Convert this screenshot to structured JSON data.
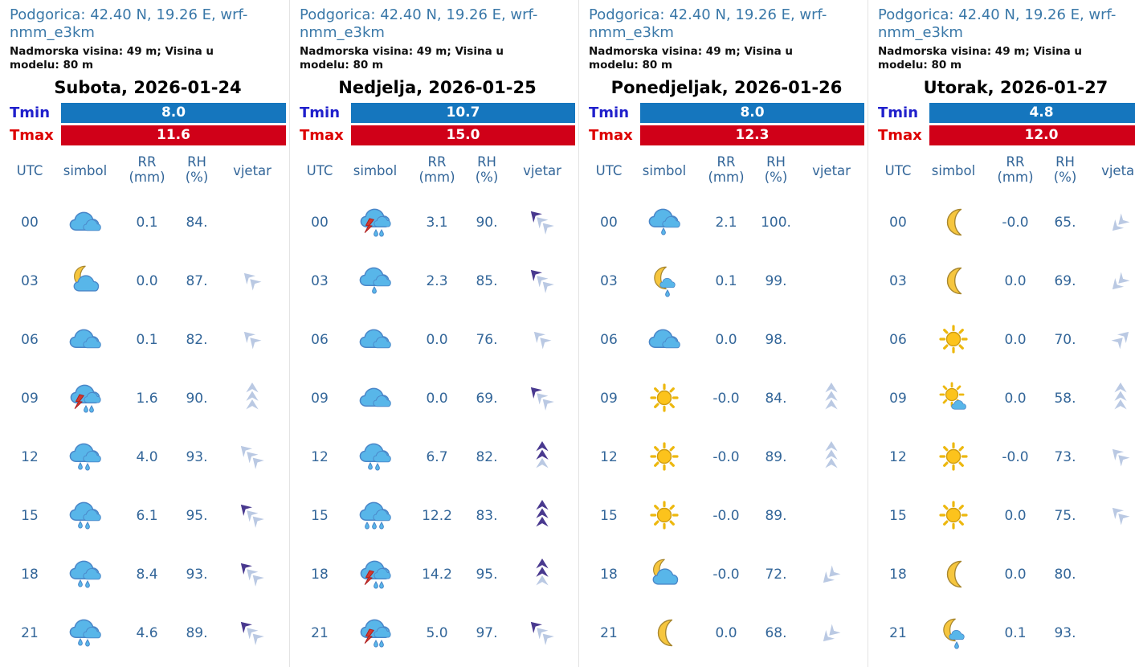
{
  "meta": {
    "location_title": "Podgorica: 42.40 N, 19.26 E, wrf-nmm_e3km",
    "elevation_line": "Nadmorska visina: 49 m; Visina u modelu: 80 m",
    "tmin_label": "Tmin",
    "tmax_label": "Tmax",
    "headers": {
      "utc": "UTC",
      "symbol": "simbol",
      "rr_line1": "RR",
      "rr_line2": "(mm)",
      "rh_line1": "RH",
      "rh_line2": "(%)",
      "wind": "vjetar"
    }
  },
  "colors": {
    "location_blue": "#3a78a8",
    "table_blue": "#336699",
    "tmin_label": "#2020cc",
    "tmax_label": "#dd0000",
    "tmin_bar": "#1576be",
    "tmax_bar": "#d00018",
    "wind_light": "#bac9e3",
    "wind_dark": "#49398f",
    "cloud_fill": "#58b6e9",
    "cloud_stroke": "#4a86c8",
    "sun_fill": "#fcc31c",
    "sun_stroke": "#cf9d12",
    "moon_fill": "#f6c63e",
    "moon_stroke": "#a8872f",
    "bolt_fill": "#d23b2f",
    "bolt_stroke": "#b01f1f"
  },
  "days": [
    {
      "title": "Subota, 2026-01-24",
      "tmin": "8.0",
      "tmax": "11.6",
      "rows": [
        {
          "utc": "00",
          "icon": "cloudy",
          "rr": "0.1",
          "rh": "84.",
          "wind": null
        },
        {
          "utc": "03",
          "icon": "night-cloudy",
          "rr": "0.0",
          "rh": "87.",
          "wind": {
            "dir": "up-left",
            "chevrons": [
              "light",
              "light"
            ]
          }
        },
        {
          "utc": "06",
          "icon": "cloudy",
          "rr": "0.1",
          "rh": "82.",
          "wind": {
            "dir": "up-left",
            "chevrons": [
              "light",
              "light"
            ]
          }
        },
        {
          "utc": "09",
          "icon": "thunderstorm-rain",
          "rr": "1.6",
          "rh": "90.",
          "wind": {
            "dir": "up",
            "chevrons": [
              "light",
              "light",
              "light"
            ]
          }
        },
        {
          "utc": "12",
          "icon": "rain",
          "rr": "4.0",
          "rh": "93.",
          "wind": {
            "dir": "up-left",
            "chevrons": [
              "light",
              "light",
              "light"
            ]
          }
        },
        {
          "utc": "15",
          "icon": "rain",
          "rr": "6.1",
          "rh": "95.",
          "wind": {
            "dir": "up-left",
            "chevrons": [
              "dark",
              "light",
              "light"
            ]
          }
        },
        {
          "utc": "18",
          "icon": "rain",
          "rr": "8.4",
          "rh": "93.",
          "wind": {
            "dir": "up-left",
            "chevrons": [
              "dark",
              "light",
              "light"
            ]
          }
        },
        {
          "utc": "21",
          "icon": "rain",
          "rr": "4.6",
          "rh": "89.",
          "wind": {
            "dir": "up-left",
            "chevrons": [
              "dark",
              "light",
              "light"
            ]
          }
        }
      ]
    },
    {
      "title": "Nedjelja, 2026-01-25",
      "tmin": "10.7",
      "tmax": "15.0",
      "rows": [
        {
          "utc": "00",
          "icon": "thunderstorm-rain",
          "rr": "3.1",
          "rh": "90.",
          "wind": {
            "dir": "up-left",
            "chevrons": [
              "dark",
              "light",
              "light"
            ]
          }
        },
        {
          "utc": "03",
          "icon": "light-rain",
          "rr": "2.3",
          "rh": "85.",
          "wind": {
            "dir": "up-left",
            "chevrons": [
              "dark",
              "light",
              "light"
            ]
          }
        },
        {
          "utc": "06",
          "icon": "cloudy",
          "rr": "0.0",
          "rh": "76.",
          "wind": {
            "dir": "up-left",
            "chevrons": [
              "light",
              "light"
            ]
          }
        },
        {
          "utc": "09",
          "icon": "cloudy",
          "rr": "0.0",
          "rh": "69.",
          "wind": {
            "dir": "up-left",
            "chevrons": [
              "dark",
              "light",
              "light"
            ]
          }
        },
        {
          "utc": "12",
          "icon": "rain",
          "rr": "6.7",
          "rh": "82.",
          "wind": {
            "dir": "up",
            "chevrons": [
              "dark",
              "dark",
              "light"
            ]
          }
        },
        {
          "utc": "15",
          "icon": "heavy-rain",
          "rr": "12.2",
          "rh": "83.",
          "wind": {
            "dir": "up",
            "chevrons": [
              "dark",
              "dark",
              "dark"
            ]
          }
        },
        {
          "utc": "18",
          "icon": "thunderstorm-rain",
          "rr": "14.2",
          "rh": "95.",
          "wind": {
            "dir": "up",
            "chevrons": [
              "dark",
              "dark",
              "light"
            ]
          }
        },
        {
          "utc": "21",
          "icon": "thunderstorm-rain",
          "rr": "5.0",
          "rh": "97.",
          "wind": {
            "dir": "up-left",
            "chevrons": [
              "dark",
              "light",
              "light"
            ]
          }
        }
      ]
    },
    {
      "title": "Ponedjeljak, 2026-01-26",
      "tmin": "8.0",
      "tmax": "12.3",
      "rows": [
        {
          "utc": "00",
          "icon": "light-rain",
          "rr": "2.1",
          "rh": "100.",
          "wind": null
        },
        {
          "utc": "03",
          "icon": "night-light-rain",
          "rr": "0.1",
          "rh": "99.",
          "wind": null
        },
        {
          "utc": "06",
          "icon": "cloudy",
          "rr": "0.0",
          "rh": "98.",
          "wind": null
        },
        {
          "utc": "09",
          "icon": "sunny",
          "rr": "-0.0",
          "rh": "84.",
          "wind": {
            "dir": "up",
            "chevrons": [
              "light",
              "light",
              "light"
            ]
          }
        },
        {
          "utc": "12",
          "icon": "sunny",
          "rr": "-0.0",
          "rh": "89.",
          "wind": {
            "dir": "up",
            "chevrons": [
              "light",
              "light",
              "light"
            ]
          }
        },
        {
          "utc": "15",
          "icon": "sunny",
          "rr": "-0.0",
          "rh": "89.",
          "wind": null
        },
        {
          "utc": "18",
          "icon": "night-cloudy",
          "rr": "-0.0",
          "rh": "72.",
          "wind": {
            "dir": "down-left",
            "chevrons": [
              "light",
              "light"
            ]
          }
        },
        {
          "utc": "21",
          "icon": "clear-night",
          "rr": "0.0",
          "rh": "68.",
          "wind": {
            "dir": "down-left",
            "chevrons": [
              "light",
              "light"
            ]
          }
        }
      ]
    },
    {
      "title": "Utorak, 2026-01-27",
      "tmin": "4.8",
      "tmax": "12.0",
      "rows": [
        {
          "utc": "00",
          "icon": "clear-night",
          "rr": "-0.0",
          "rh": "65.",
          "wind": {
            "dir": "down-left",
            "chevrons": [
              "light",
              "light"
            ]
          }
        },
        {
          "utc": "03",
          "icon": "clear-night",
          "rr": "0.0",
          "rh": "69.",
          "wind": {
            "dir": "down-left",
            "chevrons": [
              "light",
              "light"
            ]
          }
        },
        {
          "utc": "06",
          "icon": "sunny",
          "rr": "0.0",
          "rh": "70.",
          "wind": {
            "dir": "up-right",
            "chevrons": [
              "light",
              "light"
            ]
          }
        },
        {
          "utc": "09",
          "icon": "partly-sunny",
          "rr": "0.0",
          "rh": "58.",
          "wind": {
            "dir": "up",
            "chevrons": [
              "light",
              "light",
              "light"
            ]
          }
        },
        {
          "utc": "12",
          "icon": "sunny",
          "rr": "-0.0",
          "rh": "73.",
          "wind": {
            "dir": "up-left",
            "chevrons": [
              "light",
              "light"
            ]
          }
        },
        {
          "utc": "15",
          "icon": "sunny",
          "rr": "0.0",
          "rh": "75.",
          "wind": {
            "dir": "up-left",
            "chevrons": [
              "light",
              "light"
            ]
          }
        },
        {
          "utc": "18",
          "icon": "clear-night",
          "rr": "0.0",
          "rh": "80.",
          "wind": null
        },
        {
          "utc": "21",
          "icon": "night-light-rain",
          "rr": "0.1",
          "rh": "93.",
          "wind": null
        }
      ]
    }
  ]
}
